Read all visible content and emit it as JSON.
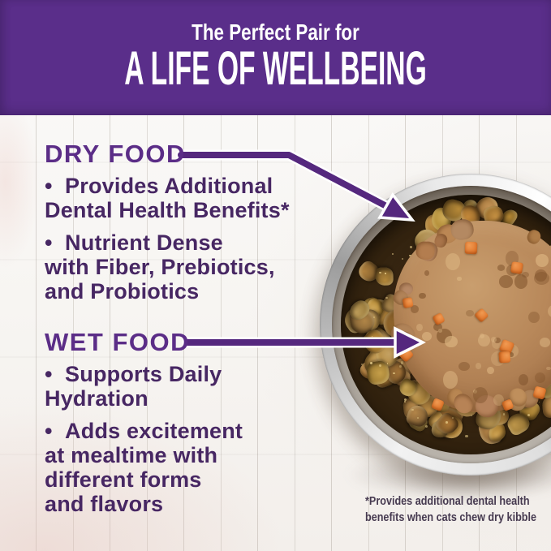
{
  "banner": {
    "subtitle": "The Perfect Pair for",
    "title": "A LIFE OF WELLBEING"
  },
  "dry_food": {
    "heading": "DRY FOOD",
    "bullets": [
      [
        "•  Provides Additional",
        "Dental Health Benefits*"
      ],
      [
        "•  Nutrient Dense",
        "with Fiber, Prebiotics,",
        "and Probiotics"
      ]
    ]
  },
  "wet_food": {
    "heading": "WET FOOD",
    "bullets": [
      [
        "•  Supports Daily",
        "Hydration"
      ],
      [
        "•  Adds excitement",
        "at mealtime with",
        "different forms",
        "and flavors"
      ]
    ]
  },
  "footnote": {
    "line1": "*Provides additional dental health",
    "line2": "benefits when cats chew dry kibble"
  },
  "photo": {
    "alt": "Stainless steel cat bowl filled with dry kibble topped with wet pate and carrot pieces"
  },
  "colors": {
    "banner_purple": "#5a2e8a",
    "heading_purple": "#5b2d87",
    "text_purple": "#472763",
    "arrow_purple": "#55287e",
    "footnote": "#463a50",
    "carrot_orange": "#e2772c",
    "kibble_brown": "#97753f",
    "pate_tan": "#b5875a",
    "steel_gray": "#d9d9d9"
  }
}
